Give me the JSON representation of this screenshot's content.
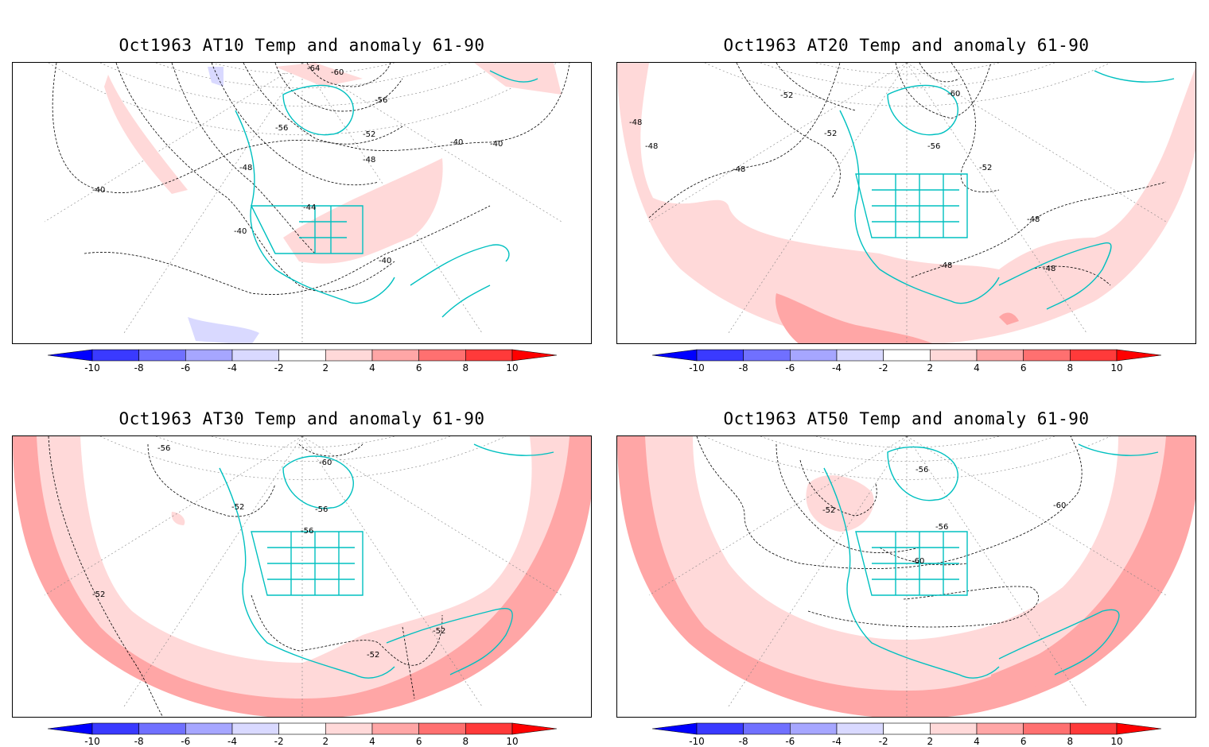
{
  "panels": [
    {
      "id": "at10",
      "title": "Oct1963 AT10 Temp and anomaly 61-90",
      "contour_labels": [
        "-64",
        "-60",
        "-56",
        "-56",
        "-52",
        "-48",
        "-48",
        "-44",
        "-40",
        "-40",
        "-40",
        "-40",
        "-40"
      ],
      "anomaly_regions": [
        {
          "level": "2 to 4",
          "color": "#ffd9d9"
        },
        {
          "level": "-4 to -2",
          "color": "#d9d9ff"
        }
      ]
    },
    {
      "id": "at20",
      "title": "Oct1963 AT20 Temp and anomaly 61-90",
      "contour_labels": [
        "-52",
        "-60",
        "-48",
        "-48",
        "-52",
        "-56",
        "-52",
        "-48",
        "-48",
        "-48",
        "-48"
      ],
      "anomaly_regions": [
        {
          "level": "2 to 4",
          "color": "#ffd9d9"
        },
        {
          "level": "4 to 6",
          "color": "#ffa6a6"
        }
      ]
    },
    {
      "id": "at30",
      "title": "Oct1963 AT30 Temp and anomaly 61-90",
      "contour_labels": [
        "-56",
        "-60",
        "-52",
        "-56",
        "-56",
        "-52",
        "-52",
        "-52"
      ],
      "anomaly_regions": [
        {
          "level": "2 to 4",
          "color": "#ffd9d9"
        },
        {
          "level": "4 to 6",
          "color": "#ffa6a6"
        }
      ]
    },
    {
      "id": "at50",
      "title": "Oct1963 AT50 Temp and anomaly 61-90",
      "contour_labels": [
        "-56",
        "-52",
        "-56",
        "-60",
        "-60"
      ],
      "anomaly_regions": [
        {
          "level": "2 to 4",
          "color": "#ffd9d9"
        },
        {
          "level": "4 to 6",
          "color": "#ffa6a6"
        }
      ]
    }
  ],
  "colorbar": {
    "ticks": [
      "-10",
      "-8",
      "-6",
      "-4",
      "-2",
      "2",
      "4",
      "6",
      "8",
      "10"
    ],
    "bins": [
      {
        "color": "#0000ff"
      },
      {
        "color": "#3a3aff"
      },
      {
        "color": "#7070ff"
      },
      {
        "color": "#a6a6ff"
      },
      {
        "color": "#d9d9ff"
      },
      {
        "color": "#ffffff"
      },
      {
        "color": "#ffd9d9"
      },
      {
        "color": "#ffa6a6"
      },
      {
        "color": "#ff7070"
      },
      {
        "color": "#ff3a3a"
      },
      {
        "color": "#ff0000"
      }
    ]
  },
  "colors": {
    "coastline": "#00c0c0",
    "contour": "#000000",
    "graticule": "#808080"
  }
}
